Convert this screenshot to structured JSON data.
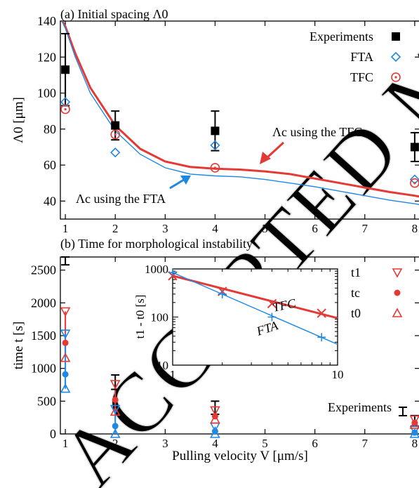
{
  "watermark": "ACCEPTED MANUSCRIPT",
  "chart_data": [
    {
      "type": "scatter",
      "title": "(a) Initial spacing Λ0",
      "ylabel": "Λ0 [μm]",
      "xlim": [
        0.9,
        8.1
      ],
      "ylim": [
        30,
        140
      ],
      "xticks": [
        1,
        2,
        3,
        4,
        5,
        6,
        7,
        8
      ],
      "yticks": [
        40,
        60,
        80,
        100,
        120,
        140
      ],
      "legend_position": "top-right",
      "series": [
        {
          "name": "Experiments",
          "color": "#000000",
          "marker": "filled-square",
          "points": [
            {
              "x": 1,
              "y": 113,
              "err": 20
            },
            {
              "x": 2,
              "y": 82,
              "err": 8
            },
            {
              "x": 4,
              "y": 79,
              "err": 11
            },
            {
              "x": 8,
              "y": 70,
              "err": 8
            }
          ]
        },
        {
          "name": "FTA",
          "color": "#1e88e5",
          "marker": "open-diamond",
          "points": [
            {
              "x": 1,
              "y": 95
            },
            {
              "x": 2,
              "y": 67
            },
            {
              "x": 4,
              "y": 71
            },
            {
              "x": 8,
              "y": 52
            }
          ]
        },
        {
          "name": "TFC",
          "color": "#e53935",
          "marker": "open-circle-dot",
          "points": [
            {
              "x": 1,
              "y": 91
            },
            {
              "x": 2,
              "y": 77
            },
            {
              "x": 4,
              "y": 58.5
            },
            {
              "x": 8,
              "y": 50
            }
          ]
        }
      ],
      "curves": [
        {
          "label": "Λc using the TFC",
          "color": "#e53935",
          "width": "thick",
          "x": [
            0.9,
            1,
            1.2,
            1.5,
            2,
            2.5,
            3,
            3.5,
            4,
            4.5,
            5,
            5.5,
            6,
            6.5,
            7,
            7.5,
            8,
            8.1
          ],
          "y": [
            142,
            137,
            122,
            103,
            82,
            69,
            62,
            59,
            58,
            57.5,
            56.5,
            55,
            52.5,
            50,
            47.5,
            45,
            43,
            42.5
          ]
        },
        {
          "label": "Λc using the FTA",
          "color": "#1e88e5",
          "width": "thin",
          "x": [
            0.9,
            1,
            1.2,
            1.5,
            2,
            2.5,
            3,
            3.5,
            4,
            4.5,
            5,
            5.5,
            6,
            6.5,
            7,
            7.5,
            8,
            8.1
          ],
          "y": [
            142,
            136,
            120,
            100,
            79,
            66,
            58.5,
            55,
            54,
            53.5,
            52,
            50,
            48,
            45.5,
            43,
            40.5,
            38.5,
            38
          ]
        }
      ]
    },
    {
      "type": "scatter",
      "title": "(b) Time for morphological instability",
      "xlabel": "Pulling velocity V [μm/s]",
      "ylabel": "time t [s]",
      "xlim": [
        0.9,
        8.1
      ],
      "ylim": [
        0,
        2700
      ],
      "xticks": [
        1,
        2,
        3,
        4,
        5,
        6,
        7,
        8
      ],
      "yticks": [
        0,
        500,
        1000,
        1500,
        2000,
        2500
      ],
      "legend_position": "top-right",
      "series": [
        {
          "name": "t1",
          "marker": "open-triangle-down",
          "points": [
            {
              "x": 1,
              "y": 1870,
              "color": "#e53935"
            },
            {
              "x": 1,
              "y": 1530,
              "color": "#1e88e5"
            },
            {
              "x": 2,
              "y": 760,
              "color": "#e53935"
            },
            {
              "x": 2,
              "y": 380,
              "color": "#1e88e5"
            },
            {
              "x": 4,
              "y": 360,
              "color": "#e53935"
            },
            {
              "x": 4,
              "y": 110,
              "color": "#1e88e5"
            },
            {
              "x": 8,
              "y": 220,
              "color": "#e53935"
            },
            {
              "x": 8,
              "y": 60,
              "color": "#1e88e5"
            }
          ]
        },
        {
          "name": "tc",
          "marker": "filled-circle",
          "points": [
            {
              "x": 1,
              "y": 1390,
              "color": "#e53935"
            },
            {
              "x": 1,
              "y": 910,
              "color": "#1e88e5"
            },
            {
              "x": 2,
              "y": 520,
              "color": "#e53935"
            },
            {
              "x": 2,
              "y": 120,
              "color": "#1e88e5"
            },
            {
              "x": 4,
              "y": 270,
              "color": "#e53935"
            },
            {
              "x": 4,
              "y": 40,
              "color": "#1e88e5"
            },
            {
              "x": 8,
              "y": 170,
              "color": "#e53935"
            },
            {
              "x": 8,
              "y": 20,
              "color": "#1e88e5"
            }
          ]
        },
        {
          "name": "t0",
          "marker": "open-triangle-up",
          "points": [
            {
              "x": 1,
              "y": 1160,
              "color": "#e53935"
            },
            {
              "x": 1,
              "y": 690,
              "color": "#1e88e5"
            },
            {
              "x": 2,
              "y": 340,
              "color": "#e53935"
            },
            {
              "x": 2,
              "y": 0,
              "color": "#1e88e5"
            },
            {
              "x": 4,
              "y": 220,
              "color": "#e53935"
            },
            {
              "x": 4,
              "y": 0,
              "color": "#1e88e5"
            },
            {
              "x": 8,
              "y": 140,
              "color": "#e53935"
            },
            {
              "x": 8,
              "y": 0,
              "color": "#1e88e5"
            }
          ]
        },
        {
          "name": "Experiments",
          "marker": "errorbar",
          "color": "#000000",
          "points": [
            {
              "x": 1,
              "low": 2580,
              "high": 2700
            },
            {
              "x": 2,
              "low": 680,
              "high": 900
            },
            {
              "x": 4,
              "low": 300,
              "high": 500
            },
            {
              "x": 8,
              "low": 120,
              "high": 280
            }
          ]
        }
      ]
    },
    {
      "type": "line",
      "scale": "log-log",
      "ylabel": "t1 - t0 [s]",
      "xlim": [
        1,
        10
      ],
      "ylim": [
        10,
        1000
      ],
      "xticks": [
        1,
        10
      ],
      "yticks": [
        10,
        100,
        1000
      ],
      "series": [
        {
          "name": "TFC",
          "color": "#e53935",
          "marker": "x",
          "width": "thick",
          "x": [
            1,
            2,
            4,
            8
          ],
          "y": [
            720,
            340,
            190,
            120
          ],
          "fit_x": [
            1,
            10
          ],
          "fit_y": [
            720,
            95
          ]
        },
        {
          "name": "FTA",
          "color": "#1e88e5",
          "marker": "+",
          "width": "thin",
          "x": [
            1,
            2,
            4,
            8
          ],
          "y": [
            840,
            300,
            100,
            38
          ],
          "fit_x": [
            1,
            10
          ],
          "fit_y": [
            840,
            27
          ]
        }
      ]
    }
  ]
}
